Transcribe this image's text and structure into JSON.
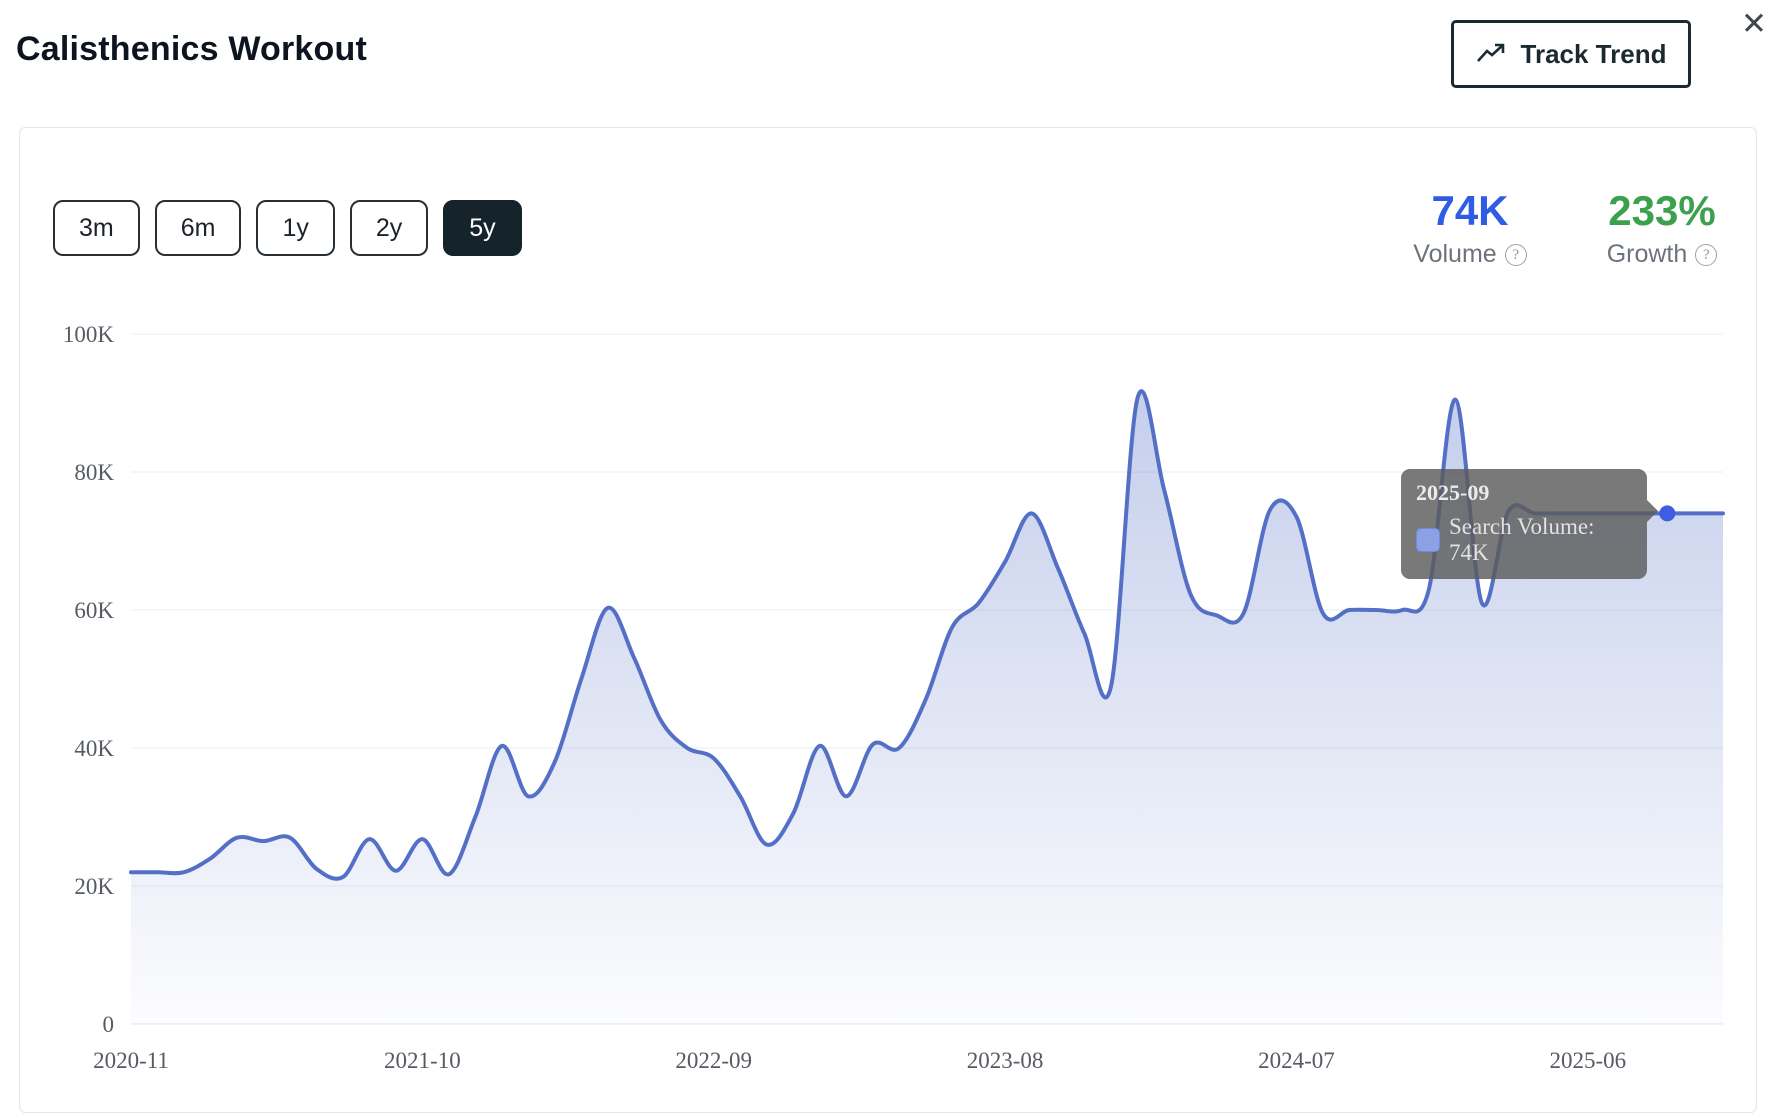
{
  "page": {
    "title": "Calisthenics Workout"
  },
  "header": {
    "track_trend_button": "Track Trend"
  },
  "icons": {
    "close": "✕",
    "help": "?",
    "track_trend": "trend-up-arrow"
  },
  "time_range": {
    "options": [
      "3m",
      "6m",
      "1y",
      "2y",
      "5y"
    ],
    "selected": "5y"
  },
  "stats": {
    "volume": {
      "value": "74K",
      "label": "Volume"
    },
    "growth": {
      "value": "233%",
      "label": "Growth"
    }
  },
  "tooltip": {
    "date": "2025-09",
    "series": "Search Volume",
    "value": "74K",
    "text": "Search Volume: 74K"
  },
  "colors": {
    "line": "#5470c6",
    "dot": "#3f5de0",
    "area_top": "rgba(84,112,198,0.34)",
    "area_bottom": "rgba(84,112,198,0.02)",
    "volume_accent": "#2e5ce5",
    "growth_accent": "#3da04d",
    "grid": "#eceef2",
    "axis_text": "#565b63",
    "selected_range_bg": "#15242b"
  },
  "chart_data": {
    "type": "area",
    "smooth": true,
    "grid": "horizontal",
    "ylim_k": [
      0,
      100
    ],
    "y_ticks_k": [
      0,
      20,
      40,
      60,
      80,
      100
    ],
    "y_tick_labels": [
      "0",
      "20K",
      "40K",
      "60K",
      "80K",
      "100K"
    ],
    "x_tick_labels": [
      "2020-11",
      "2021-10",
      "2022-09",
      "2023-08",
      "2024-07",
      "2025-06"
    ],
    "hovered_point": {
      "x": "2025-09",
      "value_k": 74
    },
    "series": [
      {
        "name": "Search Volume",
        "unit": "K",
        "x": [
          "2020-11",
          "2020-12",
          "2021-01",
          "2021-02",
          "2021-03",
          "2021-04",
          "2021-05",
          "2021-06",
          "2021-07",
          "2021-08",
          "2021-09",
          "2021-10",
          "2021-11",
          "2021-12",
          "2022-01",
          "2022-02",
          "2022-03",
          "2022-04",
          "2022-05",
          "2022-06",
          "2022-07",
          "2022-08",
          "2022-09",
          "2022-10",
          "2022-11",
          "2022-12",
          "2023-01",
          "2023-02",
          "2023-03",
          "2023-04",
          "2023-05",
          "2023-06",
          "2023-07",
          "2023-08",
          "2023-09",
          "2023-10",
          "2023-11",
          "2023-12",
          "2024-01",
          "2024-02",
          "2024-03",
          "2024-04",
          "2024-05",
          "2024-06",
          "2024-07",
          "2024-08",
          "2024-09",
          "2024-10",
          "2024-11",
          "2024-12",
          "2025-01",
          "2025-02",
          "2025-03",
          "2025-04",
          "2025-05",
          "2025-06",
          "2025-07",
          "2025-08",
          "2025-09"
        ],
        "values_k": [
          22,
          22,
          22,
          24,
          27,
          26.5,
          27,
          22.5,
          21.3,
          26.8,
          22.2,
          26.8,
          21.7,
          30,
          40.3,
          33,
          38,
          50,
          60.3,
          53,
          44,
          40,
          38.5,
          33,
          26,
          30.5,
          40.3,
          33,
          40.5,
          40,
          47,
          57.5,
          61,
          67,
          74,
          66,
          56.5,
          49,
          90.7,
          77.5,
          62.3,
          59.2,
          59.5,
          74.5,
          73.5,
          59.5,
          60,
          60,
          60,
          63,
          90.5,
          61,
          74.3,
          74,
          74,
          74,
          74,
          74,
          74
        ]
      }
    ]
  }
}
